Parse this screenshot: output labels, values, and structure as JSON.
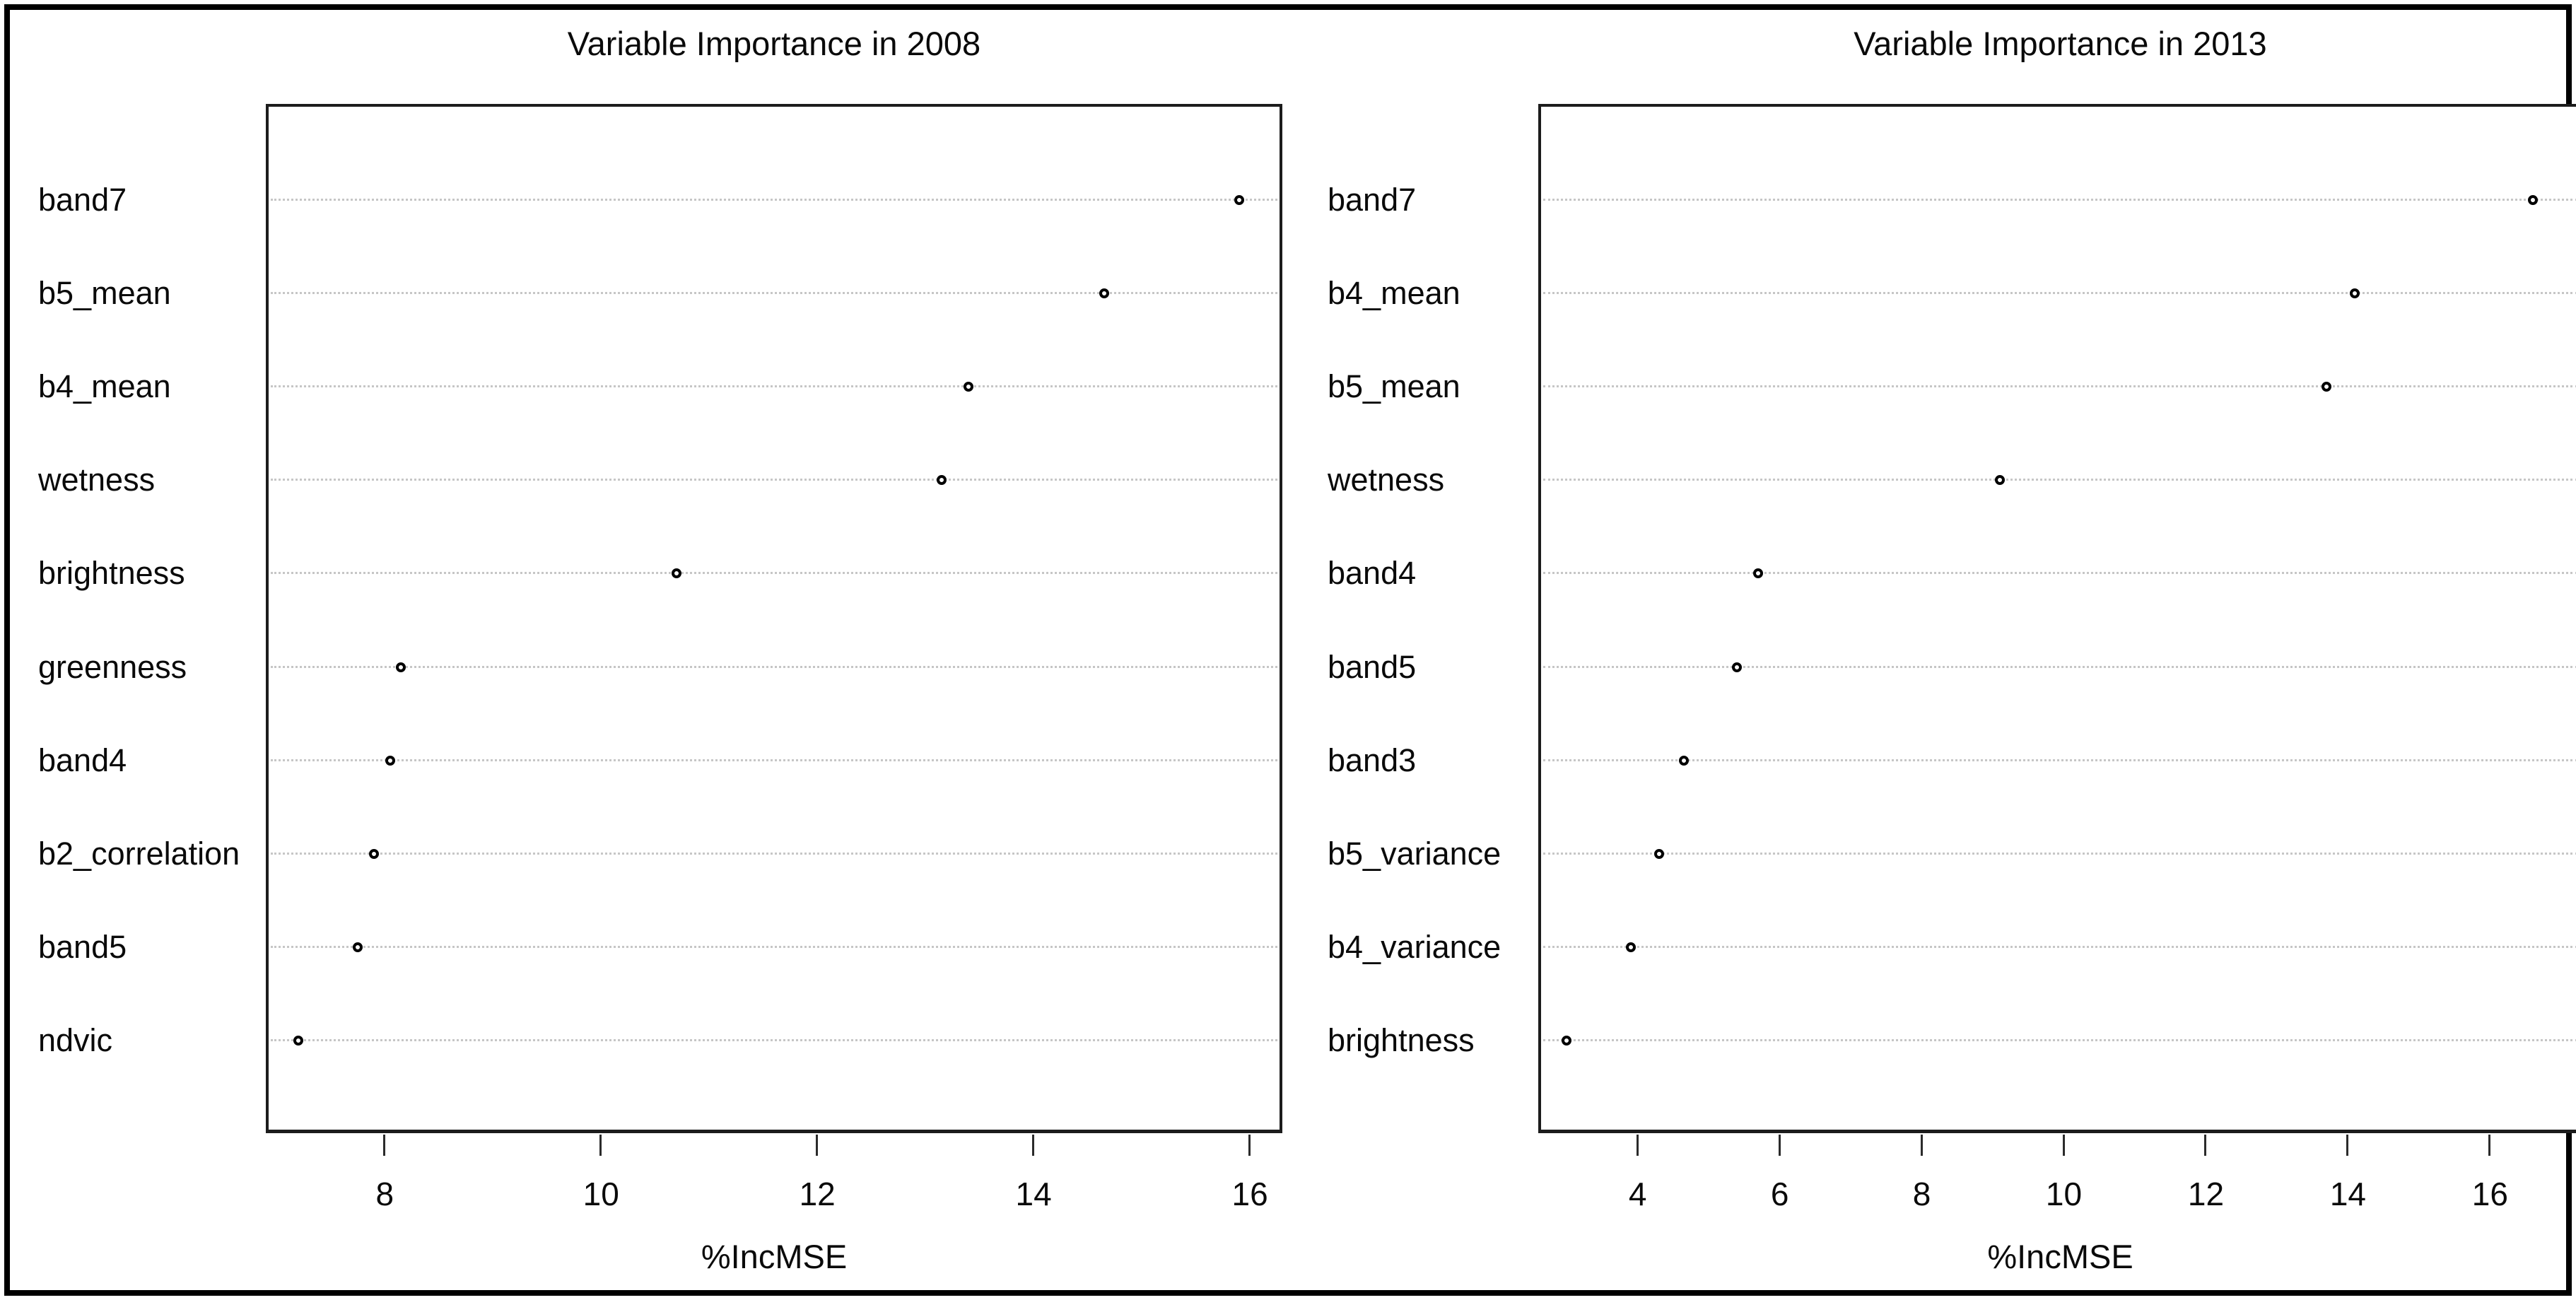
{
  "figure": {
    "background_color": "#ffffff",
    "frame_color": "#000000",
    "grid_color": "#c6c6c6",
    "point_color": "#000000",
    "text_color": "#0a0a0a"
  },
  "chart_data": [
    {
      "type": "scatter",
      "variant": "dotchart",
      "title": "Variable Importance in 2008",
      "xlabel": "%IncMSE",
      "ylabel": "",
      "order": "top-to-bottom",
      "categories": [
        "band7",
        "b5_mean",
        "b4_mean",
        "wetness",
        "brightness",
        "greenness",
        "band4",
        "b2_correlation",
        "band5",
        "ndvic"
      ],
      "values": [
        15.9,
        14.65,
        13.4,
        13.15,
        10.7,
        8.15,
        8.05,
        7.9,
        7.75,
        7.2
      ],
      "xlim": [
        6.9,
        16.3
      ],
      "xticks": [
        8,
        10,
        12,
        14,
        16
      ],
      "grid": "horizontal-dotted",
      "legend": "none",
      "marker": "open-circle"
    },
    {
      "type": "scatter",
      "variant": "dotchart",
      "title": "Variable Importance in 2013",
      "xlabel": "%IncMSE",
      "ylabel": "",
      "order": "top-to-bottom",
      "categories": [
        "band7",
        "b4_mean",
        "b5_mean",
        "wetness",
        "band4",
        "band5",
        "band3",
        "b5_variance",
        "b4_variance",
        "brightness"
      ],
      "values": [
        16.6,
        14.1,
        13.7,
        9.1,
        5.7,
        5.4,
        4.65,
        4.3,
        3.9,
        3.0
      ],
      "xlim": [
        2.6,
        17.3
      ],
      "xticks": [
        4,
        6,
        8,
        10,
        12,
        14,
        16
      ],
      "grid": "horizontal-dotted",
      "legend": "none",
      "marker": "open-circle"
    }
  ]
}
